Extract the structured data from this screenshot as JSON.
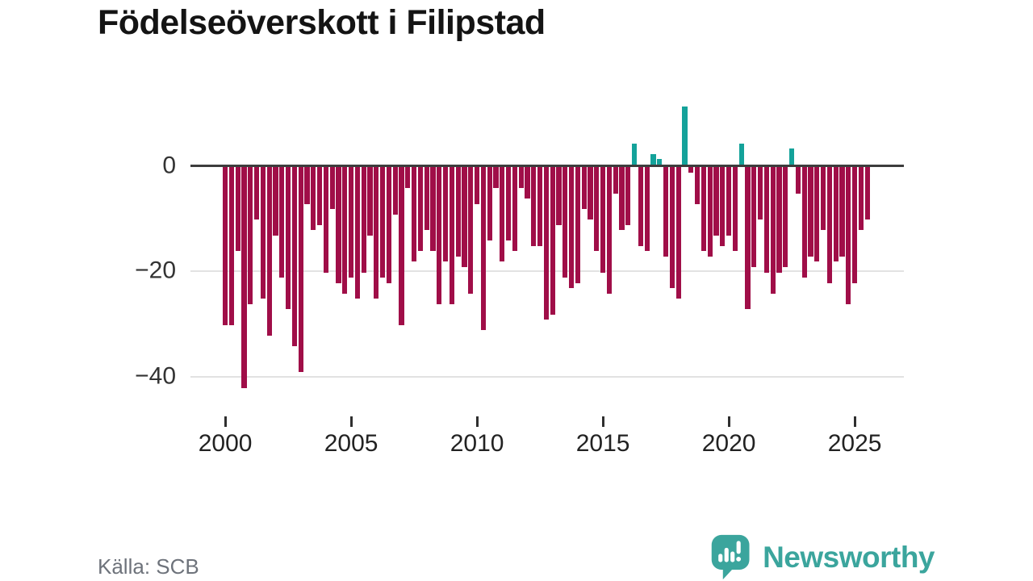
{
  "title": "Födelseöverskott i Filipstad",
  "footer": {
    "source": "Källa: SCB",
    "brand": "Newsworthy"
  },
  "colors": {
    "negative_bar": "#a00e48",
    "positive_bar": "#14a29a",
    "brand_teal": "#3ba59d",
    "zero_line": "#3d3d3d",
    "gridline": "#e2e2e2",
    "title_text": "#141414",
    "axis_text": "#333333",
    "source_text": "#6e737b"
  },
  "chart_data": {
    "type": "bar",
    "title": "Födelseöverskott i Filipstad",
    "xlabel": "",
    "ylabel": "",
    "frequency": "quarterly",
    "start_period": "2000-Q1",
    "end_period": "2025-Q3",
    "ylim": [
      -44,
      12
    ],
    "grid": "horizontal",
    "legend": "none",
    "y_ticks": [
      {
        "value": 0,
        "label": "0"
      },
      {
        "value": -20,
        "label": "−20"
      },
      {
        "value": -40,
        "label": "−40"
      }
    ],
    "x_ticks": [
      {
        "year": 2000,
        "label": "2000"
      },
      {
        "year": 2005,
        "label": "2005"
      },
      {
        "year": 2010,
        "label": "2010"
      },
      {
        "year": 2015,
        "label": "2015"
      },
      {
        "year": 2020,
        "label": "2020"
      },
      {
        "year": 2025,
        "label": "2025"
      }
    ],
    "values": [
      -30,
      -30,
      -16,
      -42,
      -26,
      -10,
      -25,
      -32,
      -13,
      -21,
      -27,
      -34,
      -39,
      -7,
      -12,
      -11,
      -20,
      -8,
      -22,
      -24,
      -21,
      -25,
      -20,
      -13,
      -25,
      -21,
      -22,
      -9,
      -30,
      -4,
      -18,
      -16,
      -12,
      -16,
      -26,
      -18,
      -26,
      -17,
      -19,
      -24,
      -7,
      -31,
      -14,
      -4,
      -18,
      -14,
      -16,
      -4,
      -6,
      -15,
      -15,
      -29,
      -28,
      -11,
      -21,
      -23,
      -22,
      -8,
      -10,
      -16,
      -20,
      -24,
      -5,
      -12,
      -11,
      4,
      -15,
      -16,
      2,
      1,
      -17,
      -23,
      -25,
      11,
      -1,
      -7,
      -16,
      -17,
      -13,
      -15,
      -13,
      -16,
      4,
      -27,
      -19,
      -10,
      -20,
      -24,
      -20,
      -19,
      3,
      -5,
      -21,
      -17,
      -18,
      -12,
      -22,
      -18,
      -17,
      -26,
      -22,
      -12,
      -10
    ]
  }
}
